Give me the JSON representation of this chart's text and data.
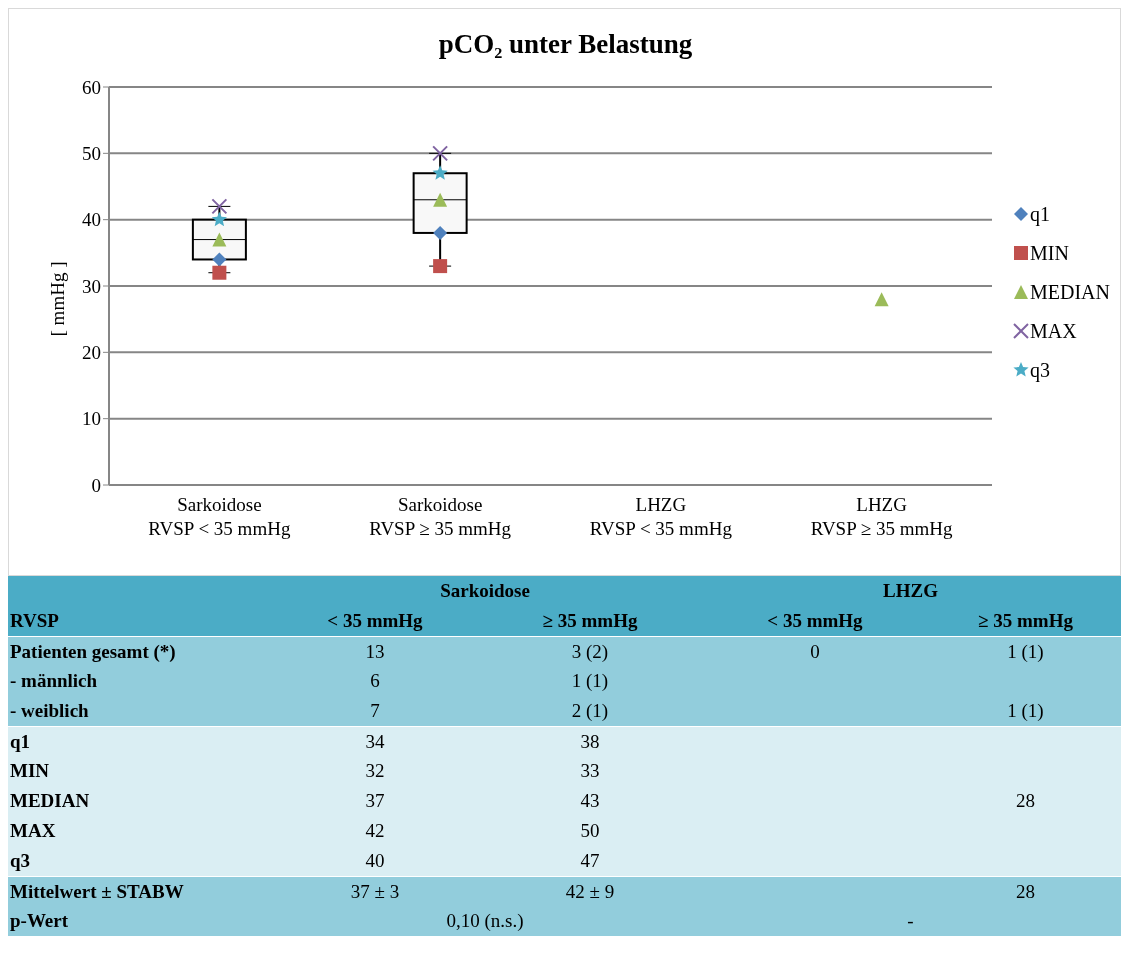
{
  "chart_data": {
    "type": "box",
    "title": "pCO₂ unter Belastung",
    "ylabel": "[ mmHg ]",
    "categories": [
      "Sarkoidose\nRVSP < 35 mmHg",
      "Sarkoidose\nRVSP ≥ 35 mmHg",
      "LHZG\nRVSP < 35 mmHg",
      "LHZG\nRVSP ≥ 35 mmHg"
    ],
    "boxes": [
      {
        "low": 32,
        "q1": 34,
        "median": 37,
        "q3": 40,
        "high": 42
      },
      {
        "low": 33,
        "q1": 38,
        "median": 43,
        "q3": 47,
        "high": 50
      },
      null,
      null
    ],
    "series": [
      {
        "name": "q1",
        "type": "scatter",
        "marker": "diamond",
        "color": "#4f81bd",
        "values": [
          34,
          38,
          null,
          null
        ]
      },
      {
        "name": "MIN",
        "type": "scatter",
        "marker": "square",
        "color": "#c0504d",
        "values": [
          32,
          33,
          null,
          null
        ]
      },
      {
        "name": "MEDIAN",
        "type": "scatter",
        "marker": "triangle",
        "color": "#9bbb59",
        "values": [
          37,
          43,
          null,
          28
        ]
      },
      {
        "name": "MAX",
        "type": "scatter",
        "marker": "cross",
        "color": "#8064a2",
        "values": [
          42,
          50,
          null,
          null
        ]
      },
      {
        "name": "q3",
        "type": "scatter",
        "marker": "star",
        "color": "#4bacc6",
        "values": [
          40,
          47,
          null,
          null
        ]
      }
    ],
    "ylim": [
      0,
      60
    ],
    "yticks": [
      0,
      10,
      20,
      30,
      40,
      50,
      60
    ],
    "grid": "y",
    "legend": "right",
    "annotations": [
      "Sarkoidose",
      "LHZG",
      "RVSP",
      "< 35 mmHg",
      "≥ 35 mmHg",
      "< 35 mmHg",
      "≥ 35 mmHg",
      "Patienten gesamt (*)",
      "13",
      "3 (2)",
      "0",
      "1 (1)",
      "- männlich",
      "6",
      "1 (1)",
      "- weiblich",
      "7",
      "2 (1)",
      "1 (1)",
      "q1",
      "34",
      "38",
      "MIN",
      "32",
      "33",
      "MEDIAN",
      "37",
      "43",
      "28",
      "MAX",
      "42",
      "50",
      "q3",
      "40",
      "47",
      "Mittelwert ± STABW",
      "37 ± 3",
      "42 ± 9",
      "28",
      "p-Wert",
      "0,10 (n.s.)",
      "-"
    ]
  }
}
